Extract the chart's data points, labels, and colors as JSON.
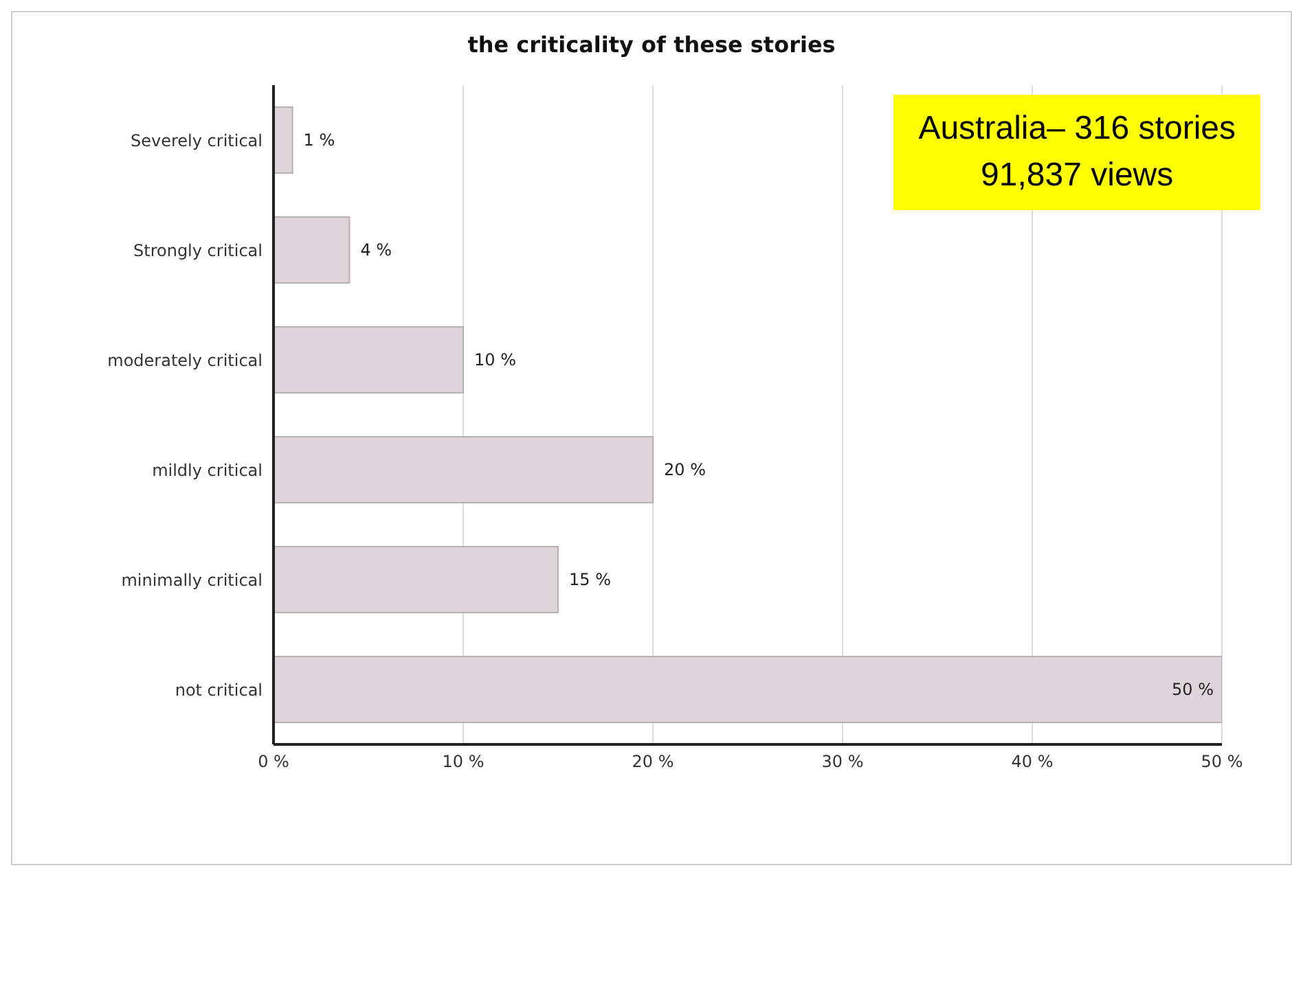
{
  "chart_data": {
    "type": "bar",
    "orientation": "horizontal",
    "title": "the criticality of these stories",
    "categories": [
      "Severely critical",
      "Strongly critical",
      "moderately critical",
      "mildly critical",
      "minimally critical",
      "not critical"
    ],
    "values": [
      1,
      4,
      10,
      20,
      15,
      50
    ],
    "value_labels": [
      "1 %",
      "4 %",
      "10 %",
      "20 %",
      "15 %",
      "50 %"
    ],
    "color": "#ded5da",
    "xlim": [
      0,
      50
    ],
    "xticks": [
      {
        "value": 0,
        "label": "0 %"
      },
      {
        "value": 10,
        "label": "10 %"
      },
      {
        "value": 20,
        "label": "20 %"
      },
      {
        "value": 30,
        "label": "30 %"
      },
      {
        "value": 40,
        "label": "40 %"
      },
      {
        "value": 50,
        "label": "50 %"
      }
    ],
    "grid": "x",
    "legend": false,
    "annotations": [
      "Australia– 316 stories",
      "91,837 views"
    ]
  }
}
